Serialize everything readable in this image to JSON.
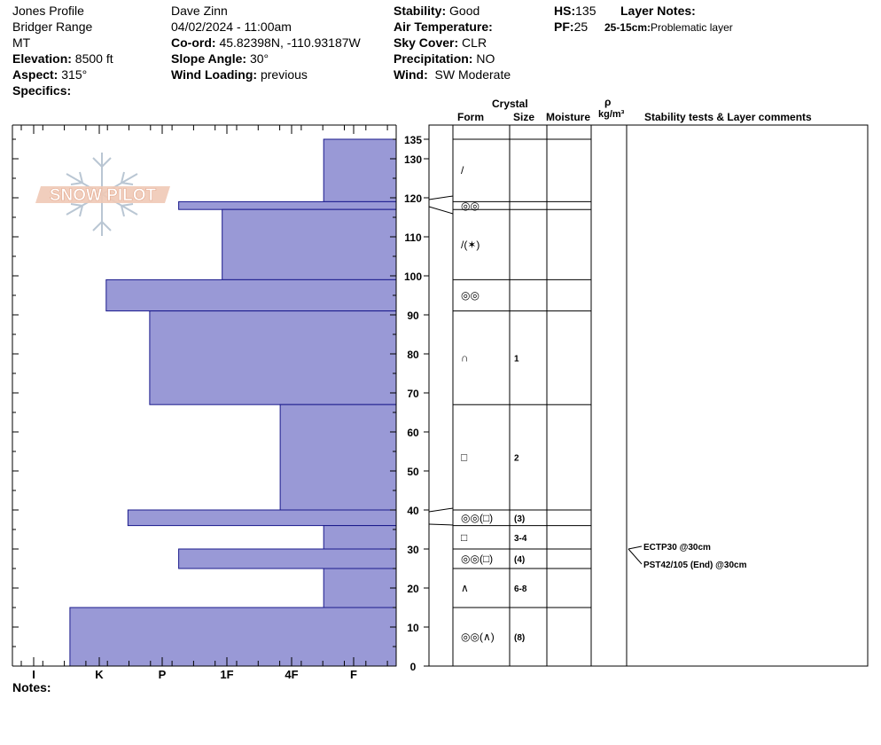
{
  "header": {
    "profile_name": "Jones Profile",
    "range": "Bridger Range",
    "state": "MT",
    "elevation_label": "Elevation:",
    "elevation_value": "8500 ft",
    "aspect_label": "Aspect:",
    "aspect_value": "315°",
    "specifics_label": "Specifics:",
    "observer": "Dave Zinn",
    "datetime": "04/02/2024 - 11:00am",
    "coord_label": "Co-ord:",
    "coord_value": "45.82398N, -110.93187W",
    "slope_label": "Slope Angle:",
    "slope_value": "30°",
    "wind_loading_label": "Wind Loading:",
    "wind_loading_value": "previous",
    "stability_label": "Stability:",
    "stability_value": "Good",
    "air_temp_label": "Air Temperature:",
    "air_temp_value": "",
    "sky_label": "Sky Cover:",
    "sky_value": "CLR",
    "precip_label": "Precipitation:",
    "precip_value": "NO",
    "wind_label": "Wind:",
    "wind_value": "SW Moderate",
    "hs_label": "HS:",
    "hs_value": "135",
    "pf_label": "PF:",
    "pf_value": "25",
    "layer_notes_label": "Layer Notes:",
    "layer_note_range": "25-15cm:",
    "layer_note_text": "Problematic layer"
  },
  "columns": {
    "crystal": "Crystal",
    "form": "Form",
    "size": "Size",
    "moisture": "Moisture",
    "rho": "ρ",
    "density_unit": "kg/m³",
    "stability": "Stability tests & Layer comments"
  },
  "logo_text": "SNOW PILOT",
  "notes_label": "Notes:",
  "chart_data": {
    "type": "bar",
    "orientation": "horizontal",
    "y_unit": "cm",
    "ylim": [
      0,
      135
    ],
    "y_ticks": [
      0,
      10,
      20,
      30,
      40,
      50,
      60,
      70,
      80,
      90,
      100,
      110,
      120,
      130,
      135
    ],
    "hardness_scale": [
      "I",
      "K",
      "P",
      "1F",
      "4F",
      "F"
    ],
    "hardness_axis_direction": "reversed (F at right, I at left)",
    "layers": [
      {
        "top": 135,
        "bottom": 119,
        "hardness": 1.0,
        "form": "/",
        "size": ""
      },
      {
        "top": 119,
        "bottom": 117,
        "hardness": 3.0,
        "form": "◎◎",
        "size": ""
      },
      {
        "top": 117,
        "bottom": 99,
        "hardness": 2.4,
        "form": "/(✶)",
        "size": ""
      },
      {
        "top": 99,
        "bottom": 91,
        "hardness": 4.0,
        "form": "◎◎",
        "size": ""
      },
      {
        "top": 91,
        "bottom": 67,
        "hardness": 3.4,
        "form": "∩",
        "size": "1"
      },
      {
        "top": 67,
        "bottom": 40,
        "hardness": 1.6,
        "form": "□",
        "size": "2"
      },
      {
        "top": 40,
        "bottom": 36,
        "hardness": 3.7,
        "form": "◎◎(□)",
        "size": "(3)"
      },
      {
        "top": 36,
        "bottom": 30,
        "hardness": 1.0,
        "form": "□",
        "size": "3-4"
      },
      {
        "top": 30,
        "bottom": 25,
        "hardness": 3.0,
        "form": "◎◎(□)",
        "size": "(4)"
      },
      {
        "top": 25,
        "bottom": 15,
        "hardness": 1.0,
        "form": "∧",
        "size": "6-8"
      },
      {
        "top": 15,
        "bottom": 0,
        "hardness": 4.5,
        "form": "◎◎(∧)",
        "size": "(8)"
      }
    ],
    "stability_tests": [
      {
        "label": "ECTP30 @30cm",
        "depth": 30
      },
      {
        "label": "PST42/105 (End) @30cm",
        "depth": 30
      }
    ]
  }
}
